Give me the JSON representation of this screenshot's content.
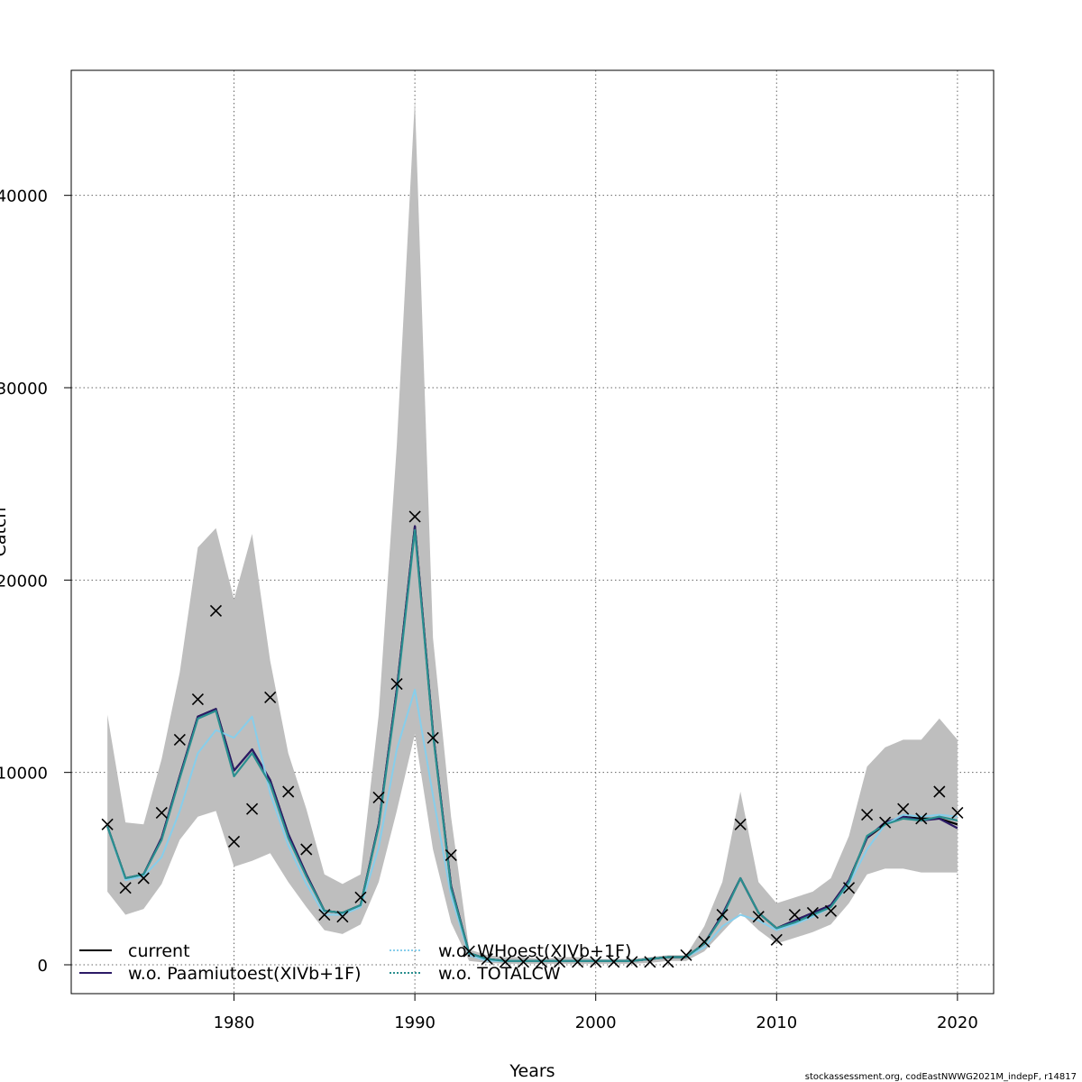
{
  "chart_data": {
    "type": "line",
    "xlabel": "Years",
    "ylabel": "Catch",
    "xlim": [
      1971,
      2022
    ],
    "ylim": [
      -1500,
      46500
    ],
    "x_ticks": [
      1980,
      1990,
      2000,
      2010,
      2020
    ],
    "y_ticks": [
      0,
      10000,
      20000,
      30000,
      40000
    ],
    "y_tick_labels": [
      "0",
      "10000",
      "20000",
      "30000",
      "40000"
    ],
    "grid": true,
    "legend_position": "bottom-left",
    "footer": "stockassessment.org, codEastNWWG2021M_indepF, r14817",
    "x": [
      1973,
      1974,
      1975,
      1976,
      1977,
      1978,
      1979,
      1980,
      1981,
      1982,
      1983,
      1984,
      1985,
      1986,
      1987,
      1988,
      1989,
      1990,
      1991,
      1992,
      1993,
      1994,
      1995,
      1996,
      1997,
      1998,
      1999,
      2000,
      2001,
      2002,
      2003,
      2004,
      2005,
      2006,
      2007,
      2008,
      2009,
      2010,
      2011,
      2012,
      2013,
      2014,
      2015,
      2016,
      2017,
      2018,
      2019,
      2020
    ],
    "ci_upper": [
      13000,
      7400,
      7300,
      10700,
      15200,
      21700,
      22700,
      19000,
      22400,
      15800,
      11000,
      8100,
      4700,
      4200,
      4700,
      13000,
      27000,
      45000,
      17000,
      7700,
      800,
      500,
      400,
      400,
      300,
      400,
      400,
      300,
      300,
      300,
      400,
      500,
      500,
      2000,
      4300,
      9000,
      4300,
      3200,
      3500,
      3800,
      4500,
      6700,
      10300,
      11300,
      11700,
      11700,
      12800,
      11700
    ],
    "ci_lower": [
      3800,
      2600,
      2900,
      4200,
      6500,
      7700,
      8000,
      5100,
      5400,
      5800,
      4300,
      3000,
      1800,
      1600,
      2100,
      4300,
      8000,
      12000,
      6000,
      2200,
      200,
      100,
      50,
      50,
      50,
      50,
      50,
      50,
      50,
      50,
      100,
      200,
      200,
      700,
      1700,
      2700,
      1800,
      1100,
      1400,
      1700,
      2100,
      3200,
      4700,
      5000,
      5000,
      4800,
      4800,
      4800
    ],
    "observed": [
      7300,
      4000,
      4500,
      7900,
      11700,
      13800,
      18400,
      6400,
      8100,
      13900,
      9000,
      6000,
      2600,
      2500,
      3500,
      8700,
      14600,
      23300,
      11800,
      5700,
      700,
      300,
      150,
      150,
      150,
      150,
      150,
      150,
      150,
      150,
      150,
      150,
      500,
      1200,
      2600,
      7300,
      2500,
      1300,
      2600,
      2700,
      2800,
      4000,
      7800,
      7400,
      8100,
      7600,
      9000,
      7900
    ],
    "series": [
      {
        "name": "current",
        "color": "#000000",
        "dashed": false,
        "values": [
          7200,
          4500,
          4700,
          6600,
          9800,
          12900,
          13300,
          10100,
          11200,
          9600,
          6800,
          4700,
          2800,
          2700,
          3100,
          7300,
          14300,
          22800,
          12100,
          4100,
          600,
          300,
          200,
          200,
          200,
          200,
          200,
          200,
          200,
          200,
          300,
          400,
          400,
          1100,
          2600,
          4500,
          2700,
          1900,
          2300,
          2700,
          3100,
          4400,
          6600,
          7300,
          7700,
          7600,
          7600,
          7300
        ]
      },
      {
        "name": "w.o. Paamiutoest(XIVb+1F)",
        "color": "#2c1a66",
        "dashed": false,
        "values": [
          7200,
          4500,
          4700,
          6600,
          9800,
          12900,
          13300,
          10100,
          11200,
          9600,
          6800,
          4700,
          2800,
          2700,
          3100,
          7300,
          14300,
          22800,
          12100,
          4100,
          600,
          300,
          200,
          200,
          200,
          200,
          200,
          200,
          200,
          200,
          300,
          400,
          400,
          1100,
          2600,
          4500,
          2700,
          1900,
          2300,
          2700,
          3100,
          4400,
          6600,
          7400,
          7700,
          7500,
          7600,
          7100
        ]
      },
      {
        "name": "w.o. WHoest(XIVb+1F)",
        "color": "#87ceeb",
        "dashed": true,
        "values": [
          7200,
          4400,
          4600,
          5600,
          8000,
          11000,
          12200,
          11800,
          12900,
          8900,
          6200,
          4200,
          2600,
          2600,
          3000,
          6100,
          11200,
          14300,
          8800,
          3600,
          500,
          200,
          200,
          200,
          200,
          200,
          200,
          200,
          200,
          200,
          300,
          400,
          400,
          900,
          2000,
          2600,
          2300,
          1800,
          2100,
          2500,
          3000,
          4200,
          6000,
          7300,
          7800,
          7700,
          7800,
          7700
        ]
      },
      {
        "name": "w.o. TOTALCW",
        "color": "#2a8f8f",
        "dashed": true,
        "values": [
          7200,
          4500,
          4700,
          6500,
          9700,
          12800,
          13200,
          9800,
          11000,
          9400,
          6600,
          4600,
          2800,
          2700,
          3100,
          7200,
          14100,
          22600,
          12000,
          4000,
          600,
          300,
          200,
          200,
          200,
          200,
          200,
          200,
          200,
          200,
          300,
          400,
          400,
          1100,
          2500,
          4500,
          2700,
          1900,
          2200,
          2600,
          3000,
          4300,
          6700,
          7300,
          7600,
          7500,
          7700,
          7500
        ]
      }
    ]
  }
}
